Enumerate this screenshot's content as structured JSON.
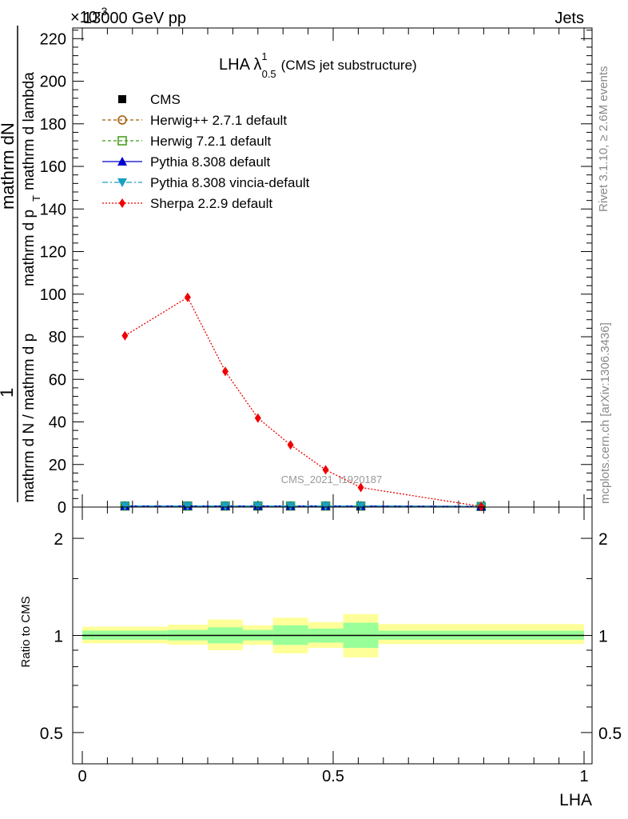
{
  "header": {
    "left": "13000 GeV pp",
    "right": "Jets",
    "scale": "×10",
    "scale_exp": "-3"
  },
  "watermarks": {
    "rivet": "Rivet 3.1.10, ≥ 2.6M events",
    "mcplots": "mcplots.cern.ch [arXiv:1306.3436]",
    "analysis": "CMS_2021_I1920187"
  },
  "title": {
    "main": "LHA λ",
    "sub": "0.5",
    "sup": "1",
    "paren": "(CMS jet substructure)"
  },
  "colors": {
    "cms": "#000000",
    "herwigpp": "#a05a00",
    "herwig7": "#3c9a14",
    "pythia": "#0000cc",
    "vincia": "#1aa0c0",
    "sherpa": "#ee0000",
    "band_inner": "#99ff99",
    "band_outer": "#ffff99"
  },
  "chart_data": [
    {
      "type": "line",
      "panel": "main",
      "ylabel_parts": {
        "num_left": "1",
        "num_right": "mathrm dN",
        "den_left": "mathrm d N / mathrm d p",
        "den_right": "mathrm d p",
        "den_tail": "mathrm d lambda",
        "sub": "T"
      },
      "xlim": [
        0,
        1
      ],
      "ylim": [
        0,
        0.225
      ],
      "ytick_values": [
        0,
        0.02,
        0.04,
        0.06,
        0.08,
        0.1,
        0.12,
        0.14,
        0.16,
        0.18,
        0.2,
        0.22
      ],
      "ytick_labels": [
        "0",
        "20",
        "40",
        "60",
        "80",
        "100",
        "120",
        "140",
        "160",
        "180",
        "200",
        "220"
      ],
      "series": [
        {
          "name": "CMS",
          "style": "cms",
          "x": [
            0.085,
            0.21,
            0.285,
            0.35,
            0.415,
            0.485,
            0.555,
            0.795
          ],
          "y": [
            0.0005,
            0.0005,
            0.0005,
            0.0005,
            0.0005,
            0.0005,
            0.0005,
            0.0003
          ]
        },
        {
          "name": "Herwig++ 2.7.1 default",
          "style": "herwigpp",
          "x": [
            0.085,
            0.21,
            0.285,
            0.35,
            0.415,
            0.485,
            0.555,
            0.795
          ],
          "y": [
            0.0005,
            0.0005,
            0.0005,
            0.0005,
            0.0005,
            0.0005,
            0.0005,
            0.0003
          ]
        },
        {
          "name": "Herwig 7.2.1 default",
          "style": "herwig7",
          "x": [
            0.085,
            0.21,
            0.285,
            0.35,
            0.415,
            0.485,
            0.555,
            0.795
          ],
          "y": [
            0.0005,
            0.0005,
            0.0005,
            0.0005,
            0.0005,
            0.0005,
            0.0005,
            0.0003
          ]
        },
        {
          "name": "Pythia 8.308 default",
          "style": "pythia",
          "x": [
            0.085,
            0.21,
            0.285,
            0.35,
            0.415,
            0.485,
            0.555,
            0.795
          ],
          "y": [
            0.0005,
            0.0005,
            0.0005,
            0.0005,
            0.0005,
            0.0005,
            0.0005,
            0.0003
          ]
        },
        {
          "name": "Pythia 8.308 vincia-default",
          "style": "vincia",
          "x": [
            0.085,
            0.21,
            0.285,
            0.35,
            0.415,
            0.485,
            0.555,
            0.795
          ],
          "y": [
            0.0005,
            0.0005,
            0.0005,
            0.0005,
            0.0005,
            0.0005,
            0.0005,
            0.0003
          ]
        },
        {
          "name": "Sherpa 2.2.9 default",
          "style": "sherpa",
          "x": [
            0.085,
            0.21,
            0.285,
            0.35,
            0.415,
            0.485,
            0.555,
            0.795
          ],
          "y": [
            0.0805,
            0.0985,
            0.0637,
            0.0418,
            0.0292,
            0.0175,
            0.0092,
            0.0003
          ]
        }
      ]
    },
    {
      "type": "area",
      "panel": "ratio",
      "ylabel": "Ratio to CMS",
      "xlabel": "LHA",
      "xlim": [
        0,
        1
      ],
      "ylim": [
        0.4,
        2.5
      ],
      "log": true,
      "xtick_values": [
        0,
        0.5,
        1
      ],
      "xtick_labels": [
        "0",
        "0.5",
        "1"
      ],
      "ytick_values": [
        0.5,
        1,
        2
      ],
      "ytick_labels": [
        "0.5",
        "1",
        "2"
      ],
      "bins": [
        {
          "x0": 0.0,
          "x1": 0.17,
          "inner": [
            0.97,
            1.035
          ],
          "outer": [
            0.945,
            1.065
          ]
        },
        {
          "x0": 0.17,
          "x1": 0.25,
          "inner": [
            0.965,
            1.04
          ],
          "outer": [
            0.935,
            1.08
          ]
        },
        {
          "x0": 0.25,
          "x1": 0.32,
          "inner": [
            0.945,
            1.06
          ],
          "outer": [
            0.9,
            1.12
          ]
        },
        {
          "x0": 0.32,
          "x1": 0.38,
          "inner": [
            0.965,
            1.04
          ],
          "outer": [
            0.935,
            1.075
          ]
        },
        {
          "x0": 0.38,
          "x1": 0.45,
          "inner": [
            0.935,
            1.075
          ],
          "outer": [
            0.88,
            1.135
          ]
        },
        {
          "x0": 0.45,
          "x1": 0.52,
          "inner": [
            0.95,
            1.05
          ],
          "outer": [
            0.915,
            1.1
          ]
        },
        {
          "x0": 0.52,
          "x1": 0.59,
          "inner": [
            0.915,
            1.095
          ],
          "outer": [
            0.855,
            1.165
          ]
        },
        {
          "x0": 0.59,
          "x1": 1.0,
          "inner": [
            0.97,
            1.035
          ],
          "outer": [
            0.94,
            1.085
          ]
        }
      ],
      "reference": 1
    }
  ]
}
